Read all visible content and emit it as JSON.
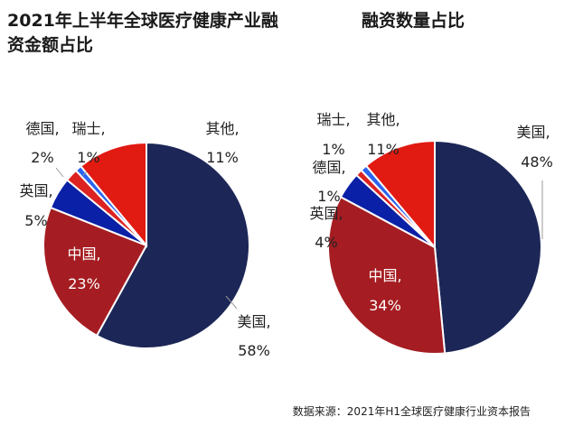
{
  "titles": {
    "left": "2021年上半年全球医疗健康产业融资金额占比",
    "right": "融资数量占比"
  },
  "source": "数据来源：2021年H1全球医疗健康行业资本报告",
  "colors": {
    "美国": "#1c2757",
    "中国": "#a51d22",
    "英国": "#0a20a6",
    "德国": "#dd2222",
    "瑞士": "#2a64f0",
    "其他": "#e11a12"
  },
  "chart_data": [
    {
      "type": "pie",
      "title": "2021年上半年全球医疗健康产业融资金额占比",
      "unit": "%",
      "slices": [
        {
          "name": "美国",
          "value": 58,
          "label": "58%"
        },
        {
          "name": "中国",
          "value": 23,
          "label": "23%"
        },
        {
          "name": "英国",
          "value": 5,
          "label": "5%"
        },
        {
          "name": "德国",
          "value": 2,
          "label": "2%"
        },
        {
          "name": "瑞士",
          "value": 1,
          "label": "1%"
        },
        {
          "name": "其他",
          "value": 11,
          "label": "11%"
        }
      ]
    },
    {
      "type": "pie",
      "title": "融资数量占比",
      "unit": "%",
      "slices": [
        {
          "name": "美国",
          "value": 48,
          "label": "48%"
        },
        {
          "name": "中国",
          "value": 34,
          "label": "34%"
        },
        {
          "name": "英国",
          "value": 4,
          "label": "4%"
        },
        {
          "name": "德国",
          "value": 1,
          "label": "1%"
        },
        {
          "name": "瑞士",
          "value": 1,
          "label": "1%"
        },
        {
          "name": "其他",
          "value": 11,
          "label": "11%"
        }
      ]
    }
  ]
}
